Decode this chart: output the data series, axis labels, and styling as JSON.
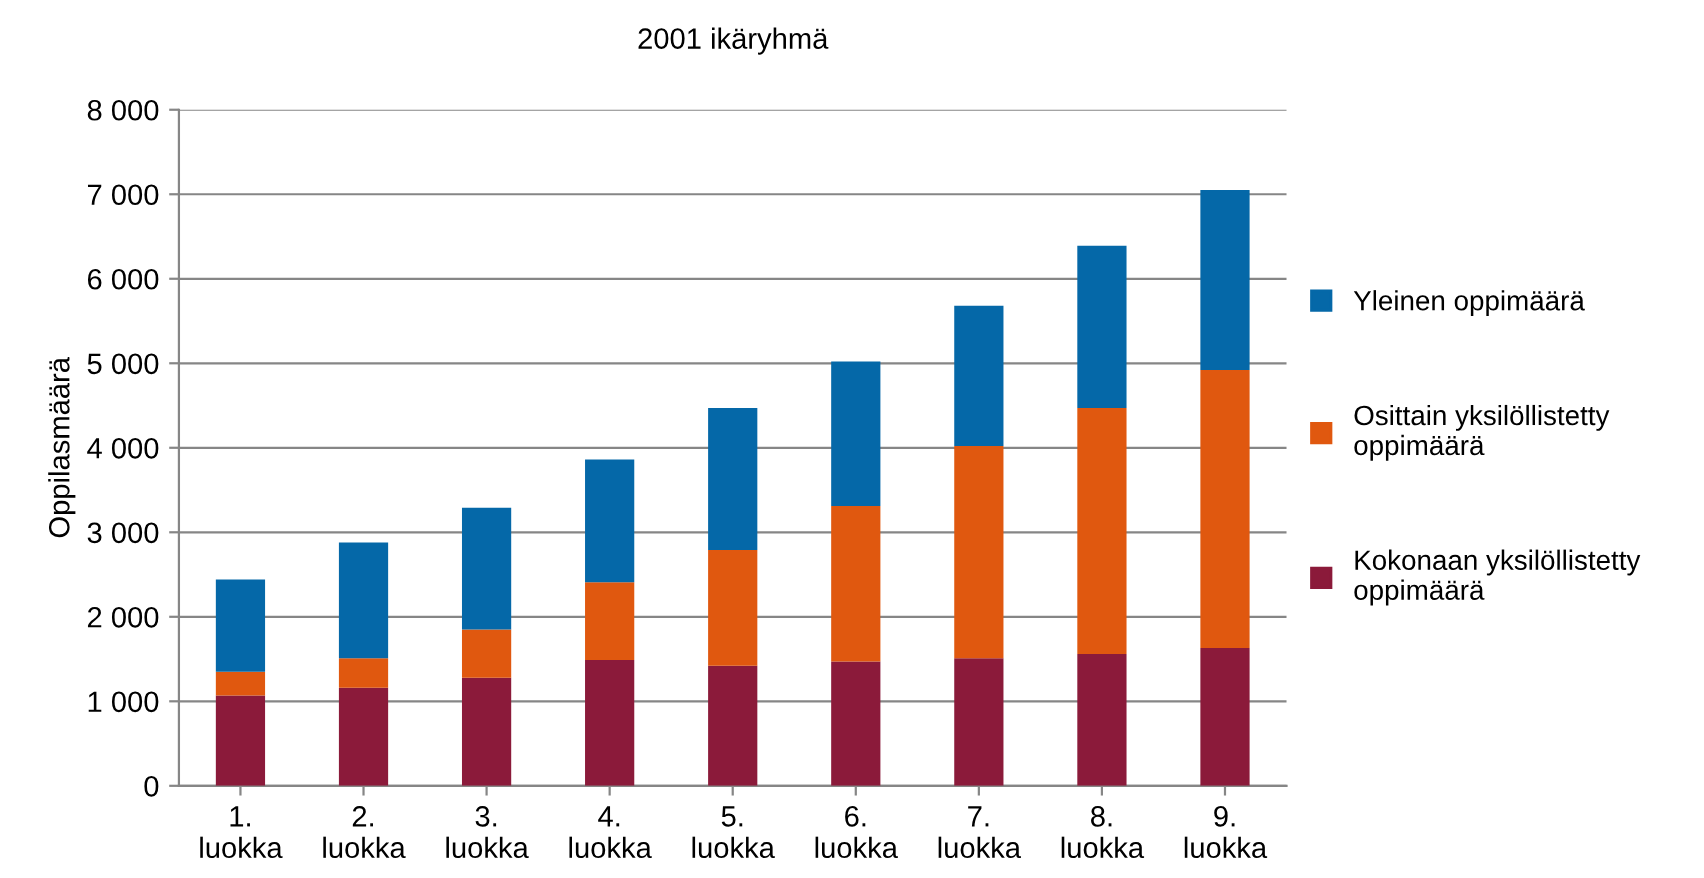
{
  "chart_data": {
    "type": "bar",
    "title": "2001 ikäryhmä",
    "ylabel": "Oppilasmäärä",
    "stacked": true,
    "grid": "y",
    "legend": "right",
    "categories": [
      "1.\nluokka",
      "2.\nluokka",
      "3.\nluokka",
      "4.\nluokka",
      "5.\nluokka",
      "6.\nluokka",
      "7.\nluokka",
      "8.\nluokka",
      "9.\nluokka"
    ],
    "series": [
      {
        "name": "Kokonaan yksilöllistetty\noppimäärä",
        "color": "#8b1a3a",
        "values": [
          1070,
          1160,
          1280,
          1490,
          1420,
          1470,
          1510,
          1560,
          1630
        ]
      },
      {
        "name": "Osittain yksilöllistetty\noppimäärä",
        "color": "#e0580f",
        "values": [
          280,
          350,
          570,
          920,
          1370,
          1840,
          2510,
          2910,
          3290
        ]
      },
      {
        "name": "Yleinen oppimäärä",
        "color": "#0568a8",
        "values": [
          1090,
          1370,
          1440,
          1450,
          1680,
          1710,
          1660,
          1920,
          2130
        ]
      }
    ],
    "ylim": [
      0,
      8000
    ],
    "yticks": [
      0,
      {
        "value": 1000,
        "label": "1 000"
      },
      {
        "value": 2000,
        "label": "2 000"
      },
      {
        "value": 3000,
        "label": "3 000"
      },
      {
        "value": 4000,
        "label": "4 000"
      },
      {
        "value": 5000,
        "label": "5 000"
      },
      {
        "value": 6000,
        "label": "6 000"
      },
      {
        "value": 7000,
        "label": "7 000"
      },
      {
        "value": 8000,
        "label": "8 000"
      }
    ]
  }
}
